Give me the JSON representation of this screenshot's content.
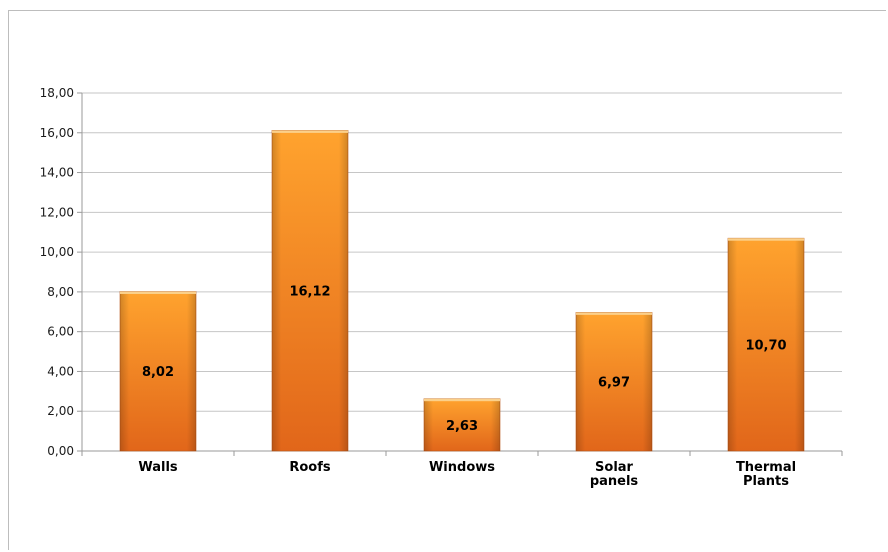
{
  "chart_data": {
    "type": "bar",
    "categories": [
      "Walls",
      "Roofs",
      "Windows",
      "Solar panels",
      "Thermal Plants"
    ],
    "category_lines": [
      [
        "Walls"
      ],
      [
        "Roofs"
      ],
      [
        "Windows"
      ],
      [
        "Solar",
        "panels"
      ],
      [
        "Thermal",
        "Plants"
      ]
    ],
    "values": [
      8.02,
      16.12,
      2.63,
      6.97,
      10.7
    ],
    "data_labels": [
      "8,02",
      "16,12",
      "2,63",
      "6,97",
      "10,70"
    ],
    "ylim": [
      0,
      18
    ],
    "yticks": [
      0,
      2,
      4,
      6,
      8,
      10,
      12,
      14,
      16,
      18
    ],
    "ytick_labels": [
      "0,00",
      "2,00",
      "4,00",
      "6,00",
      "8,00",
      "10,00",
      "12,00",
      "14,00",
      "16,00",
      "18,00"
    ],
    "grid": true,
    "legend": false,
    "title": "",
    "xlabel": "",
    "ylabel": ""
  },
  "colors": {
    "bar_top": "#ffa32e",
    "bar_bottom": "#e1661a",
    "bar_highlight": "#fbd08a",
    "gridline": "#c6c6c6",
    "axis": "#9a9a9a"
  }
}
